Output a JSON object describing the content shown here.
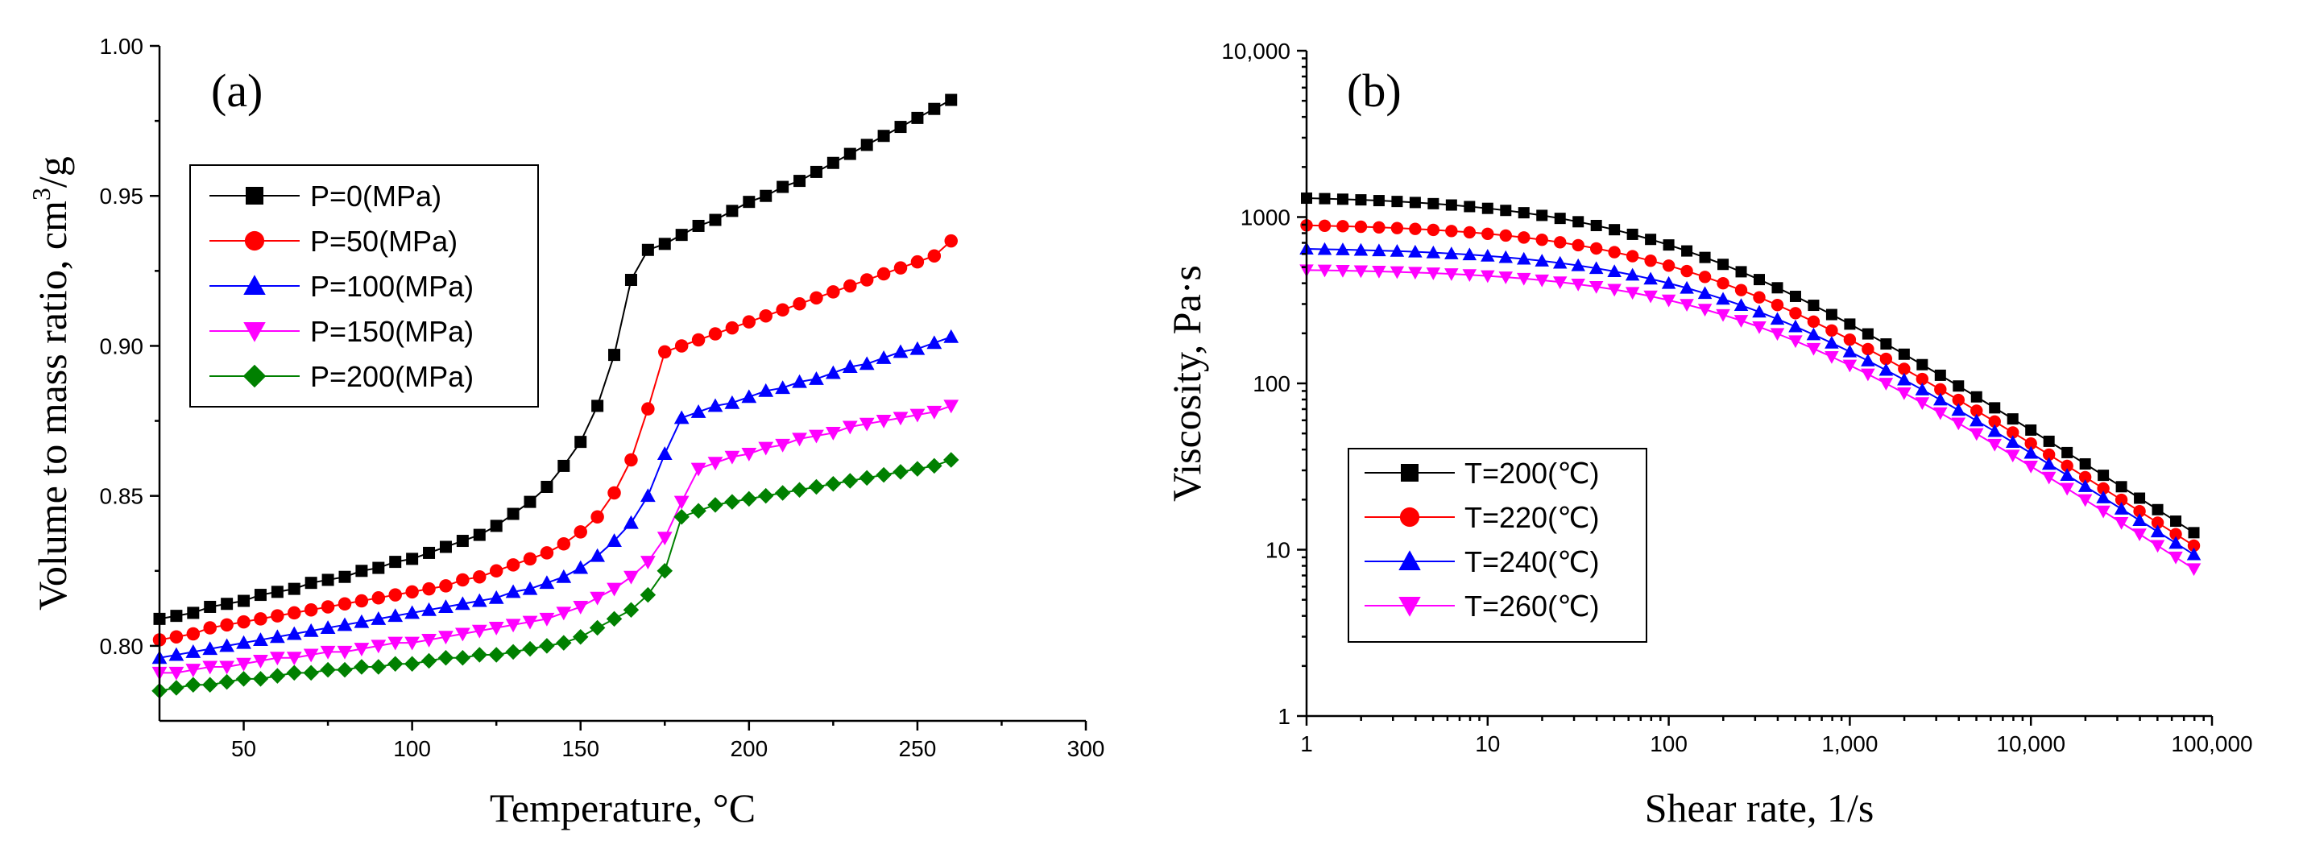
{
  "chart_data": [
    {
      "panel_label": "(a)",
      "type": "scatter",
      "xlabel": "Temperature, °C",
      "ylabel_main": "Volume to mass ratio, cm",
      "ylabel_sup": "3",
      "ylabel_end": "/g",
      "xlim": [
        25,
        300
      ],
      "ylim": [
        0.775,
        1.0
      ],
      "xticks": [
        50,
        100,
        150,
        200,
        250,
        300
      ],
      "xtick_labels": [
        "50",
        "100",
        "150",
        "200",
        "250",
        "300"
      ],
      "yticks": [
        0.8,
        0.85,
        0.9,
        0.95,
        1.0
      ],
      "ytick_labels": [
        "0.80",
        "0.85",
        "0.90",
        "0.95",
        "1.00"
      ],
      "x": [
        25,
        30,
        35,
        40,
        45,
        50,
        55,
        60,
        65,
        70,
        75,
        80,
        85,
        90,
        95,
        100,
        105,
        110,
        115,
        120,
        125,
        130,
        135,
        140,
        145,
        150,
        155,
        160,
        165,
        170,
        175,
        180,
        185,
        190,
        195,
        200,
        205,
        210,
        215,
        220,
        225,
        230,
        235,
        240,
        245,
        250,
        255,
        260
      ],
      "legend": "upper-left",
      "series": [
        {
          "name": "P=0(MPa)",
          "color": "#000000",
          "marker": "square",
          "values": [
            0.809,
            0.81,
            0.811,
            0.813,
            0.814,
            0.815,
            0.817,
            0.818,
            0.819,
            0.821,
            0.822,
            0.823,
            0.825,
            0.826,
            0.828,
            0.829,
            0.831,
            0.833,
            0.835,
            0.837,
            0.84,
            0.844,
            0.848,
            0.853,
            0.86,
            0.868,
            0.88,
            0.897,
            0.922,
            0.932,
            0.934,
            0.937,
            0.94,
            0.942,
            0.945,
            0.948,
            0.95,
            0.953,
            0.955,
            0.958,
            0.961,
            0.964,
            0.967,
            0.97,
            0.973,
            0.976,
            0.979,
            0.982
          ]
        },
        {
          "name": "P=50(MPa)",
          "color": "#ff0000",
          "marker": "circle",
          "values": [
            0.802,
            0.803,
            0.804,
            0.806,
            0.807,
            0.808,
            0.809,
            0.81,
            0.811,
            0.812,
            0.813,
            0.814,
            0.815,
            0.816,
            0.817,
            0.818,
            0.819,
            0.82,
            0.822,
            0.823,
            0.825,
            0.827,
            0.829,
            0.831,
            0.834,
            0.838,
            0.843,
            0.851,
            0.862,
            0.879,
            0.898,
            0.9,
            0.902,
            0.904,
            0.906,
            0.908,
            0.91,
            0.912,
            0.914,
            0.916,
            0.918,
            0.92,
            0.922,
            0.924,
            0.926,
            0.928,
            0.93,
            0.935
          ]
        },
        {
          "name": "P=100(MPa)",
          "color": "#0000ff",
          "marker": "triangle-up",
          "values": [
            0.796,
            0.797,
            0.798,
            0.799,
            0.8,
            0.801,
            0.802,
            0.803,
            0.804,
            0.805,
            0.806,
            0.807,
            0.808,
            0.809,
            0.81,
            0.811,
            0.812,
            0.813,
            0.814,
            0.815,
            0.816,
            0.818,
            0.819,
            0.821,
            0.823,
            0.826,
            0.83,
            0.835,
            0.841,
            0.85,
            0.864,
            0.876,
            0.878,
            0.88,
            0.881,
            0.883,
            0.885,
            0.886,
            0.888,
            0.889,
            0.891,
            0.893,
            0.894,
            0.896,
            0.898,
            0.899,
            0.901,
            0.903
          ]
        },
        {
          "name": "P=150(MPa)",
          "color": "#ff00ff",
          "marker": "triangle-down",
          "values": [
            0.791,
            0.791,
            0.792,
            0.793,
            0.793,
            0.794,
            0.795,
            0.796,
            0.796,
            0.797,
            0.798,
            0.798,
            0.799,
            0.8,
            0.801,
            0.801,
            0.802,
            0.803,
            0.804,
            0.805,
            0.806,
            0.807,
            0.808,
            0.809,
            0.811,
            0.813,
            0.816,
            0.819,
            0.823,
            0.828,
            0.836,
            0.848,
            0.859,
            0.861,
            0.863,
            0.864,
            0.866,
            0.867,
            0.869,
            0.87,
            0.871,
            0.873,
            0.874,
            0.875,
            0.876,
            0.877,
            0.878,
            0.88
          ]
        },
        {
          "name": "P=200(MPa)",
          "color": "#008000",
          "marker": "diamond",
          "values": [
            0.785,
            0.786,
            0.787,
            0.787,
            0.788,
            0.789,
            0.789,
            0.79,
            0.791,
            0.791,
            0.792,
            0.792,
            0.793,
            0.793,
            0.794,
            0.794,
            0.795,
            0.796,
            0.796,
            0.797,
            0.797,
            0.798,
            0.799,
            0.8,
            0.801,
            0.803,
            0.806,
            0.809,
            0.812,
            0.817,
            0.825,
            0.843,
            0.845,
            0.847,
            0.848,
            0.849,
            0.85,
            0.851,
            0.852,
            0.853,
            0.854,
            0.855,
            0.856,
            0.857,
            0.858,
            0.859,
            0.86,
            0.862
          ]
        }
      ]
    },
    {
      "panel_label": "(b)",
      "type": "scatter",
      "xscale": "log",
      "yscale": "log",
      "xlabel": "Shear rate, 1/s",
      "ylabel": "Viscosity, Pa·s",
      "xlim": [
        1,
        100000
      ],
      "ylim": [
        1,
        10000
      ],
      "xticks": [
        1,
        10,
        100,
        1000,
        10000,
        100000
      ],
      "xtick_labels": [
        "1",
        "10",
        "100",
        "1,000",
        "10,000",
        "100,000"
      ],
      "yticks": [
        1,
        10,
        100,
        1000,
        10000
      ],
      "ytick_labels": [
        "1",
        "10",
        "100",
        "1000",
        "10,000"
      ],
      "legend": "lower-left",
      "x_log_start": 0,
      "x_log_step": 0.1,
      "series": [
        {
          "name": "T=200(℃)",
          "color": "#000000",
          "marker": "square",
          "eta0": 1350,
          "lambda": 0.0098,
          "n": 0.3,
          "count": 50
        },
        {
          "name": "T=220(℃)",
          "color": "#ff0000",
          "marker": "circle",
          "eta0": 920,
          "lambda": 0.0073,
          "n": 0.3,
          "count": 50
        },
        {
          "name": "T=240(℃)",
          "color": "#0000ff",
          "marker": "triangle-up",
          "eta0": 660,
          "lambda": 0.0054,
          "n": 0.3,
          "count": 50
        },
        {
          "name": "T=260(℃)",
          "color": "#ff00ff",
          "marker": "triangle-down",
          "eta0": 490,
          "lambda": 0.0043,
          "n": 0.29,
          "count": 50
        }
      ]
    }
  ]
}
